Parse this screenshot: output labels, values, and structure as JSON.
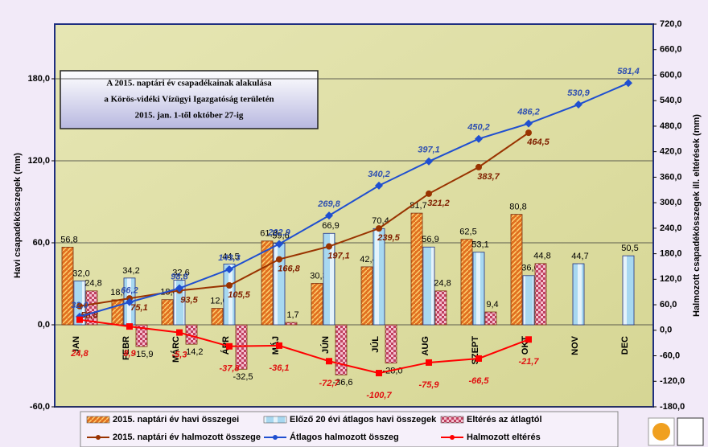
{
  "chart_data": {
    "type": "combo",
    "title": [
      "A 2015. naptári év csapadékainak alakulása",
      "a Körös-vidéki Vízügyi Igazgatóság területén",
      "2015. jan. 1-től október 27-ig"
    ],
    "y_label": "Havi csapadékösszegek (mm)",
    "y2_label": "Halmozott csapadékösszegek ill. eltérések (mm)",
    "categories": [
      "JAN",
      "FEBR",
      "MÁRC",
      "ÁPR",
      "MÁJ",
      "JÚN",
      "JÚL",
      "AUG",
      "SZEPT",
      "OKT",
      "NOV",
      "DEC"
    ],
    "ylim": [
      -60,
      220
    ],
    "yticks": [
      {
        "value": -60,
        "label": "-60,0"
      },
      {
        "value": 0,
        "label": "0,0"
      },
      {
        "value": 60,
        "label": "60,0"
      },
      {
        "value": 120,
        "label": "120,0"
      },
      {
        "value": 180,
        "label": "180,0"
      }
    ],
    "y2lim": [
      -180,
      720
    ],
    "y2ticks": [
      {
        "value": -180,
        "label": "-180,0"
      },
      {
        "value": -120,
        "label": "-120,0"
      },
      {
        "value": -60,
        "label": "-60,0"
      },
      {
        "value": 0,
        "label": "0,0"
      },
      {
        "value": 60,
        "label": "60,0"
      },
      {
        "value": 120,
        "label": "120,0"
      },
      {
        "value": 180,
        "label": "180,0"
      },
      {
        "value": 240,
        "label": "240,0"
      },
      {
        "value": 300,
        "label": "300,0"
      },
      {
        "value": 360,
        "label": "360,0"
      },
      {
        "value": 420,
        "label": "420,0"
      },
      {
        "value": 480,
        "label": "480,0"
      },
      {
        "value": 540,
        "label": "540,0"
      },
      {
        "value": 600,
        "label": "600,0"
      },
      {
        "value": 660,
        "label": "660,0"
      },
      {
        "value": 720,
        "label": "720,0"
      }
    ],
    "grid": true,
    "legend": "bottom",
    "series": [
      {
        "name": "2015. naptári év havi összegei",
        "type": "bar",
        "color": "#e07020",
        "values": [
          56.8,
          18.3,
          18.4,
          12.0,
          61.3,
          30.3,
          42.4,
          81.7,
          62.5,
          80.8,
          null,
          null
        ],
        "value_labels": [
          "56,8",
          "18,3",
          "18,4",
          "12,0",
          "61,3",
          "30,3",
          "42,4",
          "81,7",
          "62,5",
          "80,8",
          null,
          null
        ]
      },
      {
        "name": "Előző 20 évi átlagos havi összegek",
        "type": "bar",
        "color": "#a8d8f0",
        "values": [
          32.0,
          34.2,
          32.6,
          44.5,
          59.6,
          66.9,
          70.4,
          56.9,
          53.1,
          36.0,
          44.7,
          50.5
        ],
        "value_labels": [
          "32,0",
          "34,2",
          "32,6",
          "44,5",
          "59,6",
          "66,9",
          "70,4",
          "56,9",
          "53,1",
          "36,0",
          "44,7",
          "50,5"
        ]
      },
      {
        "name": "Eltérés az átlagtól",
        "type": "bar",
        "color": "#c04060",
        "values": [
          24.8,
          -15.9,
          -14.2,
          -32.5,
          1.7,
          -36.6,
          -28.0,
          24.8,
          9.4,
          44.8,
          null,
          null
        ],
        "value_labels": [
          "24,8",
          "-15,9",
          "-14,2",
          "-32,5",
          "1,7",
          "-36,6",
          "-28,0",
          "24,8",
          "9,4",
          "44,8",
          null,
          null
        ]
      },
      {
        "name": "2015. naptári év halmozott összege",
        "type": "line",
        "axis": "y2",
        "marker": "circle",
        "color": "#993300",
        "values": [
          56.8,
          75.1,
          93.5,
          105.5,
          166.8,
          197.1,
          239.5,
          321.2,
          383.7,
          464.5,
          null,
          null
        ],
        "value_labels": [
          "56,8",
          "75,1",
          "93,5",
          "105,5",
          "166,8",
          "197,1",
          "239,5",
          "321,2",
          "383,7",
          "464,5",
          null,
          null
        ]
      },
      {
        "name": "Átlagos halmozott összeg",
        "type": "line",
        "axis": "y2",
        "marker": "diamond",
        "color": "#1f4fd0",
        "values": [
          32.0,
          66.2,
          98.8,
          143.3,
          202.9,
          269.8,
          340.2,
          397.1,
          450.2,
          486.2,
          530.9,
          581.4
        ],
        "value_labels": [
          "32,0",
          "66,2",
          "98,8",
          "143,3",
          "202,9",
          "269,8",
          "340,2",
          "397,1",
          "450,2",
          "486,2",
          "530,9",
          "581,4"
        ]
      },
      {
        "name": "Halmozott eltérés",
        "type": "line",
        "axis": "y2",
        "marker": "square",
        "color": "#ff0000",
        "values": [
          24.8,
          8.9,
          -5.3,
          -37.8,
          -36.1,
          -72.7,
          -100.7,
          -75.9,
          -66.5,
          -21.7,
          null,
          null
        ],
        "value_labels": [
          "24,8",
          "8,9",
          "-5,3",
          "-37,8",
          "-36,1",
          "-72,7",
          "-100,7",
          "-75,9",
          "-66,5",
          "-21,7",
          null,
          null
        ]
      }
    ]
  }
}
